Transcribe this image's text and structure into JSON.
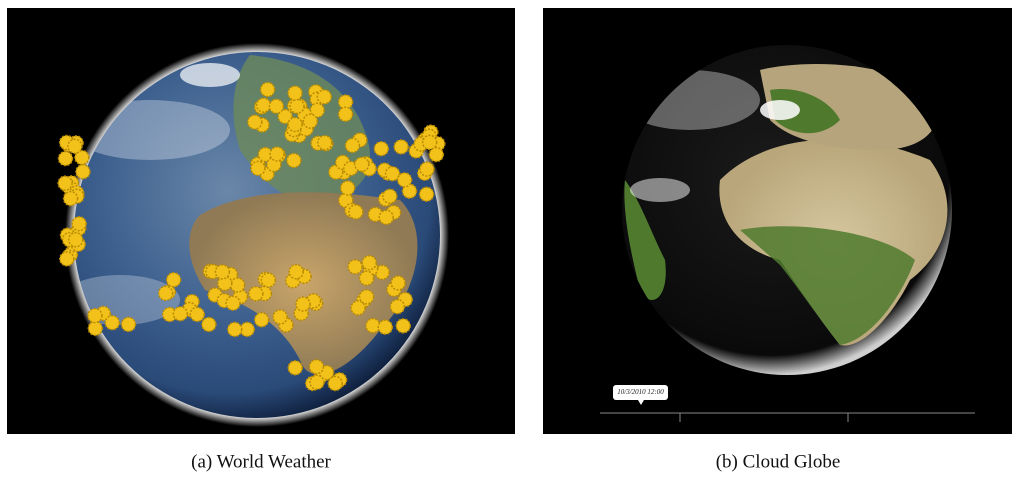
{
  "figure": {
    "panels": [
      {
        "caption": "(a) World Weather"
      },
      {
        "caption": "(b) Cloud Globe",
        "timestamp": "10/3/2010 12:00"
      }
    ]
  }
}
